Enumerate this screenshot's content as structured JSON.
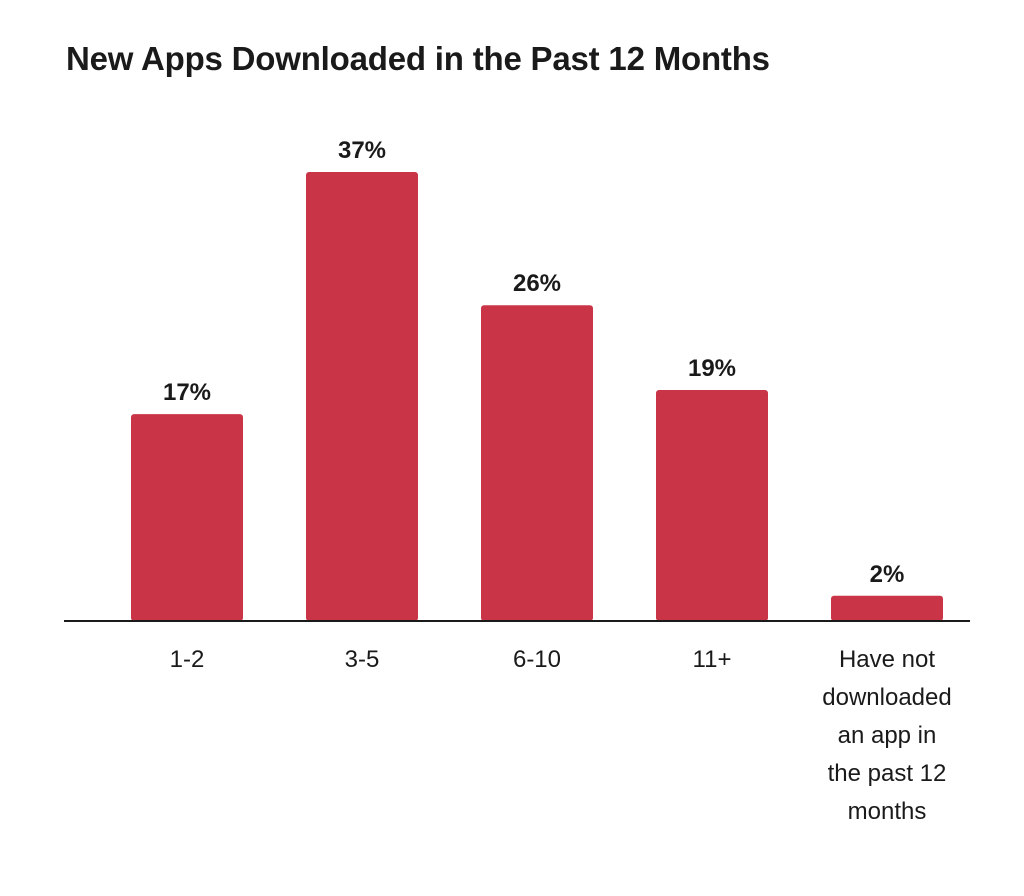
{
  "chart_data": {
    "type": "bar",
    "title": "New Apps Downloaded in the Past 12 Months",
    "categories": [
      "1-2",
      "3-5",
      "6-10",
      "11+",
      "Have not downloaded an app in the past 12 months"
    ],
    "category_lines": [
      [
        "1-2"
      ],
      [
        "3-5"
      ],
      [
        "6-10"
      ],
      [
        "11+"
      ],
      [
        "Have not",
        "downloaded",
        "an app in",
        "the past 12",
        "months"
      ]
    ],
    "values": [
      17,
      37,
      26,
      19,
      2
    ],
    "value_labels": [
      "17%",
      "37%",
      "26%",
      "19%",
      "2%"
    ],
    "unit": "%",
    "ylim": [
      0,
      40
    ],
    "grid": false,
    "legend": "none",
    "bar_color": "#c93546"
  }
}
